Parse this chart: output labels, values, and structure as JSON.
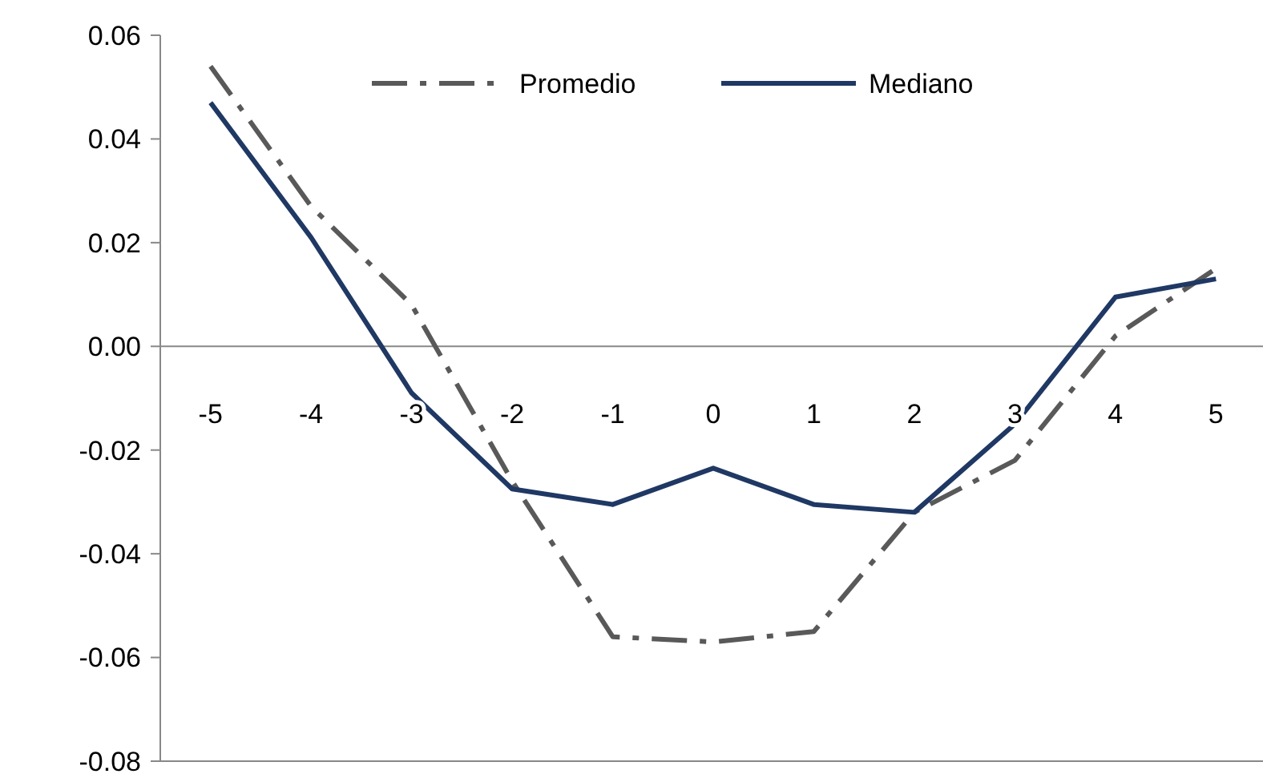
{
  "chart_data": {
    "type": "line",
    "categories": [
      "-5",
      "-4",
      "-3",
      "-2",
      "-1",
      "0",
      "1",
      "2",
      "3",
      "4",
      "5"
    ],
    "ylim": [
      -0.08,
      0.06
    ],
    "yticks": [
      {
        "value": -0.08,
        "label": "-0.08"
      },
      {
        "value": -0.06,
        "label": "-0.06"
      },
      {
        "value": -0.04,
        "label": "-0.04"
      },
      {
        "value": -0.02,
        "label": "-0.02"
      },
      {
        "value": 0,
        "label": "0.00"
      },
      {
        "value": 0.02,
        "label": "0.02"
      },
      {
        "value": 0.04,
        "label": "0.04"
      },
      {
        "value": 0.06,
        "label": "0.06"
      }
    ],
    "grid": false,
    "legend": "top",
    "marker": "none",
    "series": [
      {
        "name": "Promedio",
        "color": "#595959",
        "line_style": "dashed",
        "values": [
          0.054,
          0.027,
          0.008,
          -0.026,
          -0.056,
          -0.057,
          -0.055,
          -0.032,
          -0.022,
          0.002,
          0.015
        ]
      },
      {
        "name": "Mediano",
        "color": "#1f3864",
        "line_style": "solid",
        "values": [
          0.047,
          0.021,
          -0.009,
          -0.0275,
          -0.0305,
          -0.0235,
          -0.0305,
          -0.032,
          -0.015,
          0.0095,
          0.013
        ]
      }
    ]
  }
}
